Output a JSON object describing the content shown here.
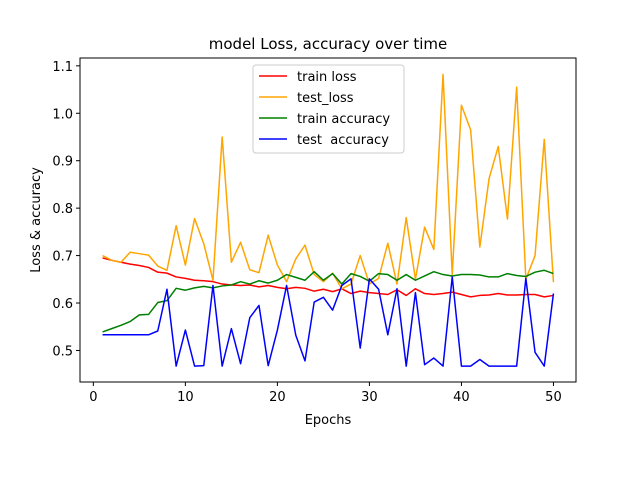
{
  "chart_data": {
    "type": "line",
    "title": "model Loss, accuracy over time",
    "xlabel": "Epochs",
    "ylabel": "Loss & accuracy",
    "xlim": [
      -1.45,
      52.45
    ],
    "ylim": [
      0.4335,
      1.1165
    ],
    "xticks": [
      0,
      10,
      20,
      30,
      40,
      50
    ],
    "yticks": [
      0.5,
      0.6,
      0.7,
      0.8,
      0.9,
      1.0,
      1.1
    ],
    "ytick_labels": [
      "0.5",
      "0.6",
      "0.7",
      "0.8",
      "0.9",
      "1.0",
      "1.1"
    ],
    "grid": false,
    "legend_position": "top-center",
    "x": [
      1,
      2,
      3,
      4,
      5,
      6,
      7,
      8,
      9,
      10,
      11,
      12,
      13,
      14,
      15,
      16,
      17,
      18,
      19,
      20,
      21,
      22,
      23,
      24,
      25,
      26,
      27,
      28,
      29,
      30,
      31,
      32,
      33,
      34,
      35,
      36,
      37,
      38,
      39,
      40,
      41,
      42,
      43,
      44,
      45,
      46,
      47,
      48,
      49,
      50
    ],
    "series": [
      {
        "name": "train loss",
        "color": "#ff0000",
        "values": [
          0.695,
          0.69,
          0.686,
          0.682,
          0.679,
          0.675,
          0.665,
          0.663,
          0.655,
          0.652,
          0.648,
          0.647,
          0.645,
          0.64,
          0.638,
          0.637,
          0.638,
          0.634,
          0.637,
          0.633,
          0.63,
          0.633,
          0.631,
          0.625,
          0.629,
          0.624,
          0.63,
          0.62,
          0.625,
          0.622,
          0.62,
          0.618,
          0.628,
          0.616,
          0.63,
          0.62,
          0.618,
          0.62,
          0.623,
          0.618,
          0.613,
          0.616,
          0.617,
          0.62,
          0.617,
          0.617,
          0.618,
          0.618,
          0.613,
          0.616
        ]
      },
      {
        "name": "test_loss",
        "color": "#ffa500",
        "values": [
          0.7,
          0.69,
          0.686,
          0.707,
          0.704,
          0.701,
          0.678,
          0.669,
          0.763,
          0.68,
          0.778,
          0.725,
          0.648,
          0.95,
          0.686,
          0.728,
          0.67,
          0.664,
          0.743,
          0.68,
          0.645,
          0.693,
          0.722,
          0.66,
          0.645,
          0.663,
          0.63,
          0.64,
          0.7,
          0.64,
          0.652,
          0.726,
          0.64,
          0.78,
          0.65,
          0.76,
          0.713,
          1.082,
          0.66,
          1.017,
          0.965,
          0.718,
          0.862,
          0.93,
          0.777,
          1.055,
          0.65,
          0.7,
          0.945,
          0.644
        ]
      },
      {
        "name": "train accuracy",
        "color": "#008000",
        "values": [
          0.539,
          0.546,
          0.553,
          0.561,
          0.575,
          0.576,
          0.601,
          0.605,
          0.631,
          0.627,
          0.632,
          0.635,
          0.632,
          0.636,
          0.638,
          0.645,
          0.64,
          0.647,
          0.642,
          0.648,
          0.66,
          0.654,
          0.648,
          0.666,
          0.648,
          0.662,
          0.64,
          0.662,
          0.656,
          0.646,
          0.662,
          0.66,
          0.648,
          0.66,
          0.648,
          0.657,
          0.666,
          0.66,
          0.657,
          0.66,
          0.66,
          0.659,
          0.655,
          0.655,
          0.662,
          0.658,
          0.656,
          0.665,
          0.669,
          0.662
        ]
      },
      {
        "name": "test  accuracy",
        "color": "#0000ff",
        "values": [
          0.533,
          0.533,
          0.533,
          0.533,
          0.533,
          0.533,
          0.541,
          0.629,
          0.467,
          0.543,
          0.467,
          0.468,
          0.637,
          0.467,
          0.546,
          0.472,
          0.569,
          0.595,
          0.468,
          0.543,
          0.637,
          0.532,
          0.478,
          0.602,
          0.612,
          0.585,
          0.637,
          0.651,
          0.505,
          0.651,
          0.629,
          0.533,
          0.63,
          0.467,
          0.622,
          0.47,
          0.484,
          0.467,
          0.655,
          0.467,
          0.467,
          0.481,
          0.467,
          0.467,
          0.467,
          0.467,
          0.652,
          0.496,
          0.467,
          0.62
        ]
      }
    ]
  }
}
